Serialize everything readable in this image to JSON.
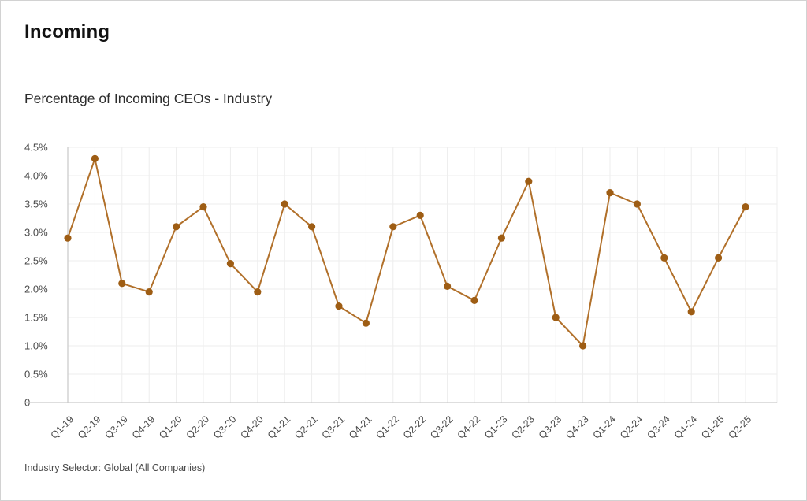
{
  "card": {
    "title": "Incoming",
    "subtitle": "Percentage of Incoming CEOs - Industry",
    "footer": "Industry Selector: Global (All Companies)"
  },
  "chart_data": {
    "type": "line",
    "title": "Percentage of Incoming CEOs - Industry",
    "categories": [
      "Q1-19",
      "Q2-19",
      "Q3-19",
      "Q4-19",
      "Q1-20",
      "Q2-20",
      "Q3-20",
      "Q4-20",
      "Q1-21",
      "Q2-21",
      "Q3-21",
      "Q4-21",
      "Q1-22",
      "Q2-22",
      "Q3-22",
      "Q4-22",
      "Q1-23",
      "Q2-23",
      "Q3-23",
      "Q4-23",
      "Q1-24",
      "Q2-24",
      "Q3-24",
      "Q4-24",
      "Q1-25",
      "Q2-25"
    ],
    "series": [
      {
        "name": "Percentage of Incoming CEOs",
        "values": [
          2.9,
          4.3,
          2.1,
          1.95,
          3.1,
          3.45,
          2.45,
          1.95,
          3.5,
          3.1,
          1.7,
          1.4,
          3.1,
          3.3,
          2.05,
          1.8,
          2.9,
          3.9,
          1.5,
          1.0,
          3.7,
          3.5,
          2.55,
          1.6,
          2.55,
          3.45
        ]
      }
    ],
    "y_ticks": [
      {
        "value": 4.5,
        "label": "4.5%"
      },
      {
        "value": 4.0,
        "label": "4.0%"
      },
      {
        "value": 3.5,
        "label": "3.5%"
      },
      {
        "value": 3.0,
        "label": "3.0%"
      },
      {
        "value": 2.5,
        "label": "2.5%"
      },
      {
        "value": 2.0,
        "label": "2.0%"
      },
      {
        "value": 1.5,
        "label": "1.5%"
      },
      {
        "value": 1.0,
        "label": "1.0%"
      },
      {
        "value": 0.5,
        "label": "0.5%"
      },
      {
        "value": 0,
        "label": "0"
      }
    ],
    "ylim": [
      0,
      4.5
    ],
    "xlabel": "",
    "ylabel": "",
    "grid": true,
    "legend_position": "none",
    "colors": {
      "line": "#b1702a",
      "marker": "#9e5d14",
      "gridline": "#ededed",
      "axis": "#c9c9c9"
    }
  }
}
